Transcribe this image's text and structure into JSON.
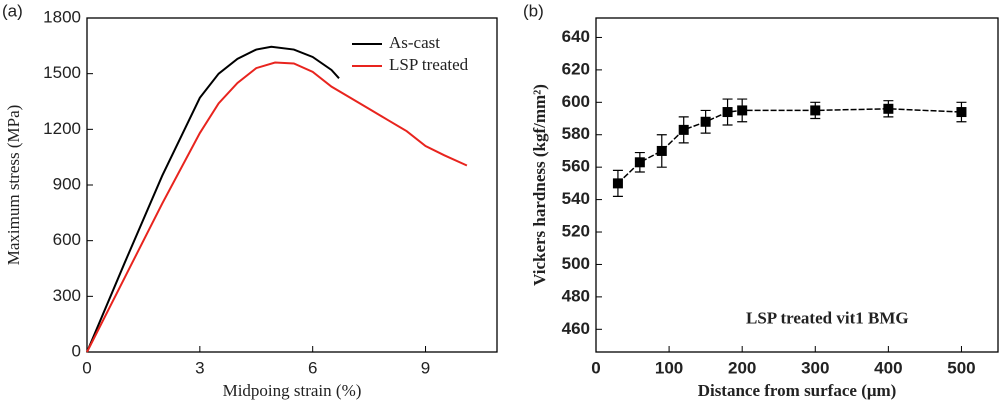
{
  "chart_data": [
    {
      "type": "line",
      "panel_label": "(a)",
      "xlabel": "Midpoing strain (%)",
      "ylabel": "Maximum stress (MPa)",
      "xlim": [
        0,
        10.9
      ],
      "ylim": [
        0,
        1800
      ],
      "xticks": [
        0,
        3,
        6,
        9
      ],
      "yticks": [
        0,
        300,
        600,
        900,
        1200,
        1500,
        1800
      ],
      "legend": "upper right",
      "series": [
        {
          "name": "As-cast",
          "color": "#000000",
          "x": [
            0,
            1,
            2,
            3,
            3.5,
            4,
            4.5,
            4.9,
            5.5,
            6,
            6.5,
            6.7
          ],
          "values": [
            0,
            480,
            950,
            1370,
            1500,
            1580,
            1630,
            1645,
            1630,
            1590,
            1520,
            1475
          ]
        },
        {
          "name": "LSP treated",
          "color": "#e8241e",
          "x": [
            0,
            1,
            2,
            3,
            3.5,
            4,
            4.5,
            5,
            5.5,
            6,
            6.5,
            7,
            7.5,
            8,
            8.5,
            9,
            9.5,
            10.1
          ],
          "values": [
            0,
            400,
            800,
            1180,
            1340,
            1450,
            1530,
            1560,
            1555,
            1510,
            1430,
            1370,
            1310,
            1250,
            1190,
            1110,
            1060,
            1005
          ]
        }
      ]
    },
    {
      "type": "scatter",
      "panel_label": "(b)",
      "xlabel": "Distance from surface (μm)",
      "ylabel": "Vickers hardness (kgf/mm²)",
      "annotation": "LSP treated vit1 BMG",
      "xlim": [
        0,
        550
      ],
      "ylim": [
        446,
        652
      ],
      "xticks": [
        0,
        100,
        200,
        300,
        400,
        500
      ],
      "yticks": [
        460,
        480,
        500,
        520,
        540,
        560,
        580,
        600,
        620,
        640
      ],
      "series": [
        {
          "color": "#000000",
          "x": [
            30,
            60,
            90,
            120,
            150,
            180,
            200,
            300,
            400,
            500
          ],
          "values": [
            550,
            563,
            570,
            583,
            588,
            594,
            595,
            595,
            596,
            594
          ],
          "errors": [
            8,
            6,
            10,
            8,
            7,
            8,
            7,
            5,
            5,
            6
          ]
        }
      ]
    }
  ]
}
